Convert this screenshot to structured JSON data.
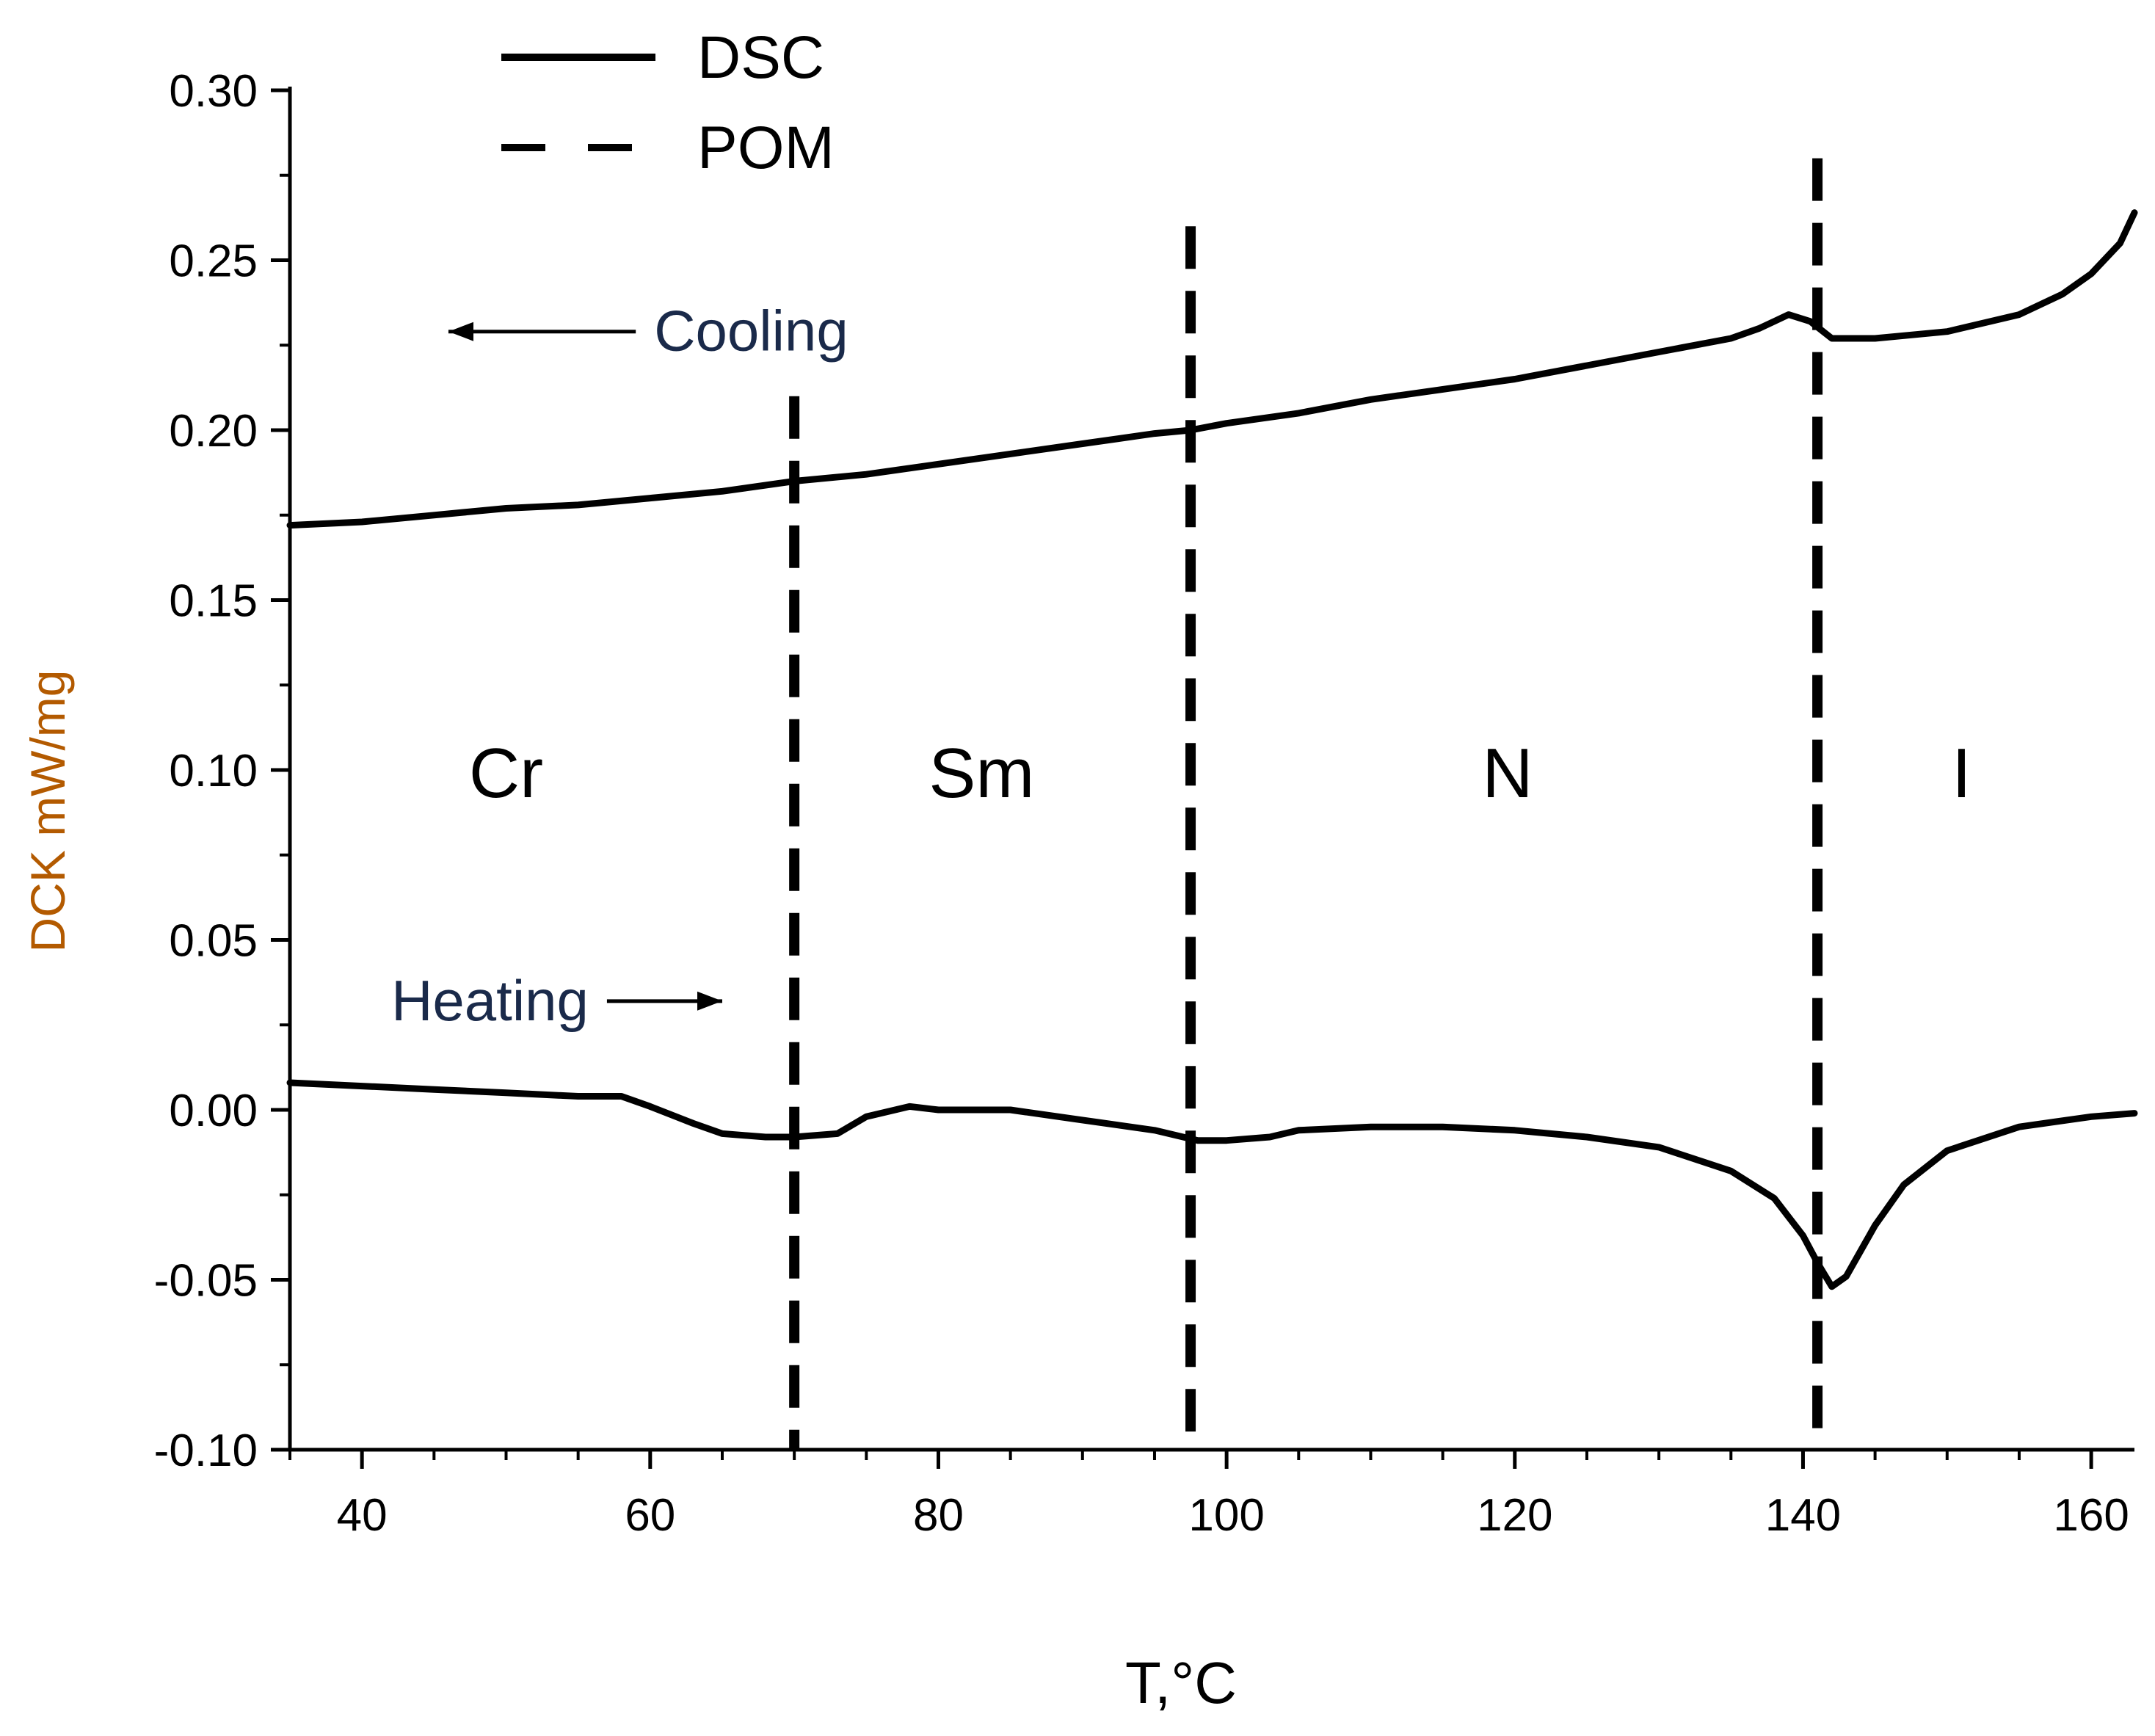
{
  "chart_data": {
    "type": "line",
    "xlabel": "T,°C",
    "ylabel": "DCK mW/mg",
    "xlim": [
      35,
      163
    ],
    "ylim": [
      -0.1,
      0.3
    ],
    "x_ticks": [
      40,
      60,
      80,
      100,
      120,
      140,
      160
    ],
    "x_tick_labels": [
      "40",
      "60",
      "80",
      "100",
      "120",
      "140",
      "160"
    ],
    "y_ticks": [
      -0.1,
      -0.05,
      0.0,
      0.05,
      0.1,
      0.15,
      0.2,
      0.25,
      0.3
    ],
    "y_tick_labels": [
      "-0.10",
      "-0.05",
      "0.00",
      "0.05",
      "0.10",
      "0.15",
      "0.20",
      "0.25",
      "0.30"
    ],
    "legend": [
      {
        "label": "DSC",
        "style": "solid"
      },
      {
        "label": "POM",
        "style": "dashed"
      }
    ],
    "legend_position": "top-left",
    "series": [
      {
        "name": "Cooling",
        "style": "solid",
        "color": "#000000",
        "x": [
          35,
          40,
          45,
          50,
          55,
          60,
          65,
          70,
          75,
          80,
          85,
          90,
          95,
          97.5,
          100,
          105,
          110,
          115,
          120,
          125,
          130,
          135,
          137,
          139,
          140.5,
          142,
          145,
          150,
          155,
          158,
          160,
          162,
          163
        ],
        "y": [
          0.172,
          0.173,
          0.175,
          0.177,
          0.178,
          0.18,
          0.182,
          0.185,
          0.187,
          0.19,
          0.193,
          0.196,
          0.199,
          0.2,
          0.202,
          0.205,
          0.209,
          0.212,
          0.215,
          0.219,
          0.223,
          0.227,
          0.23,
          0.234,
          0.232,
          0.227,
          0.227,
          0.229,
          0.234,
          0.24,
          0.246,
          0.255,
          0.264
        ]
      },
      {
        "name": "Heating",
        "style": "solid",
        "color": "#000000",
        "x": [
          35,
          40,
          45,
          50,
          55,
          58,
          60,
          63,
          65,
          68,
          70,
          73,
          75,
          78,
          80,
          85,
          90,
          95,
          98,
          100,
          103,
          105,
          110,
          115,
          120,
          125,
          130,
          135,
          138,
          140,
          141,
          142,
          143,
          145,
          147,
          150,
          155,
          160,
          163
        ],
        "y": [
          0.008,
          0.007,
          0.006,
          0.005,
          0.004,
          0.004,
          0.001,
          -0.004,
          -0.007,
          -0.008,
          -0.008,
          -0.007,
          -0.002,
          0.001,
          0.0,
          0.0,
          -0.003,
          -0.006,
          -0.009,
          -0.009,
          -0.008,
          -0.006,
          -0.005,
          -0.005,
          -0.006,
          -0.008,
          -0.011,
          -0.018,
          -0.026,
          -0.037,
          -0.045,
          -0.052,
          -0.049,
          -0.034,
          -0.022,
          -0.012,
          -0.005,
          -0.002,
          -0.001
        ]
      }
    ],
    "phase_boundaries_pom": [
      {
        "x": 70,
        "y_from": -0.1,
        "y_to": 0.21
      },
      {
        "x": 97.5,
        "y_from": -0.1,
        "y_to": 0.26
      },
      {
        "x": 141,
        "y_from": -0.1,
        "y_to": 0.28
      }
    ],
    "phase_labels": [
      {
        "text": "Cr",
        "x": 50,
        "y": 0.092
      },
      {
        "text": "Sm",
        "x": 83,
        "y": 0.092
      },
      {
        "text": "N",
        "x": 119.5,
        "y": 0.092
      },
      {
        "text": "I",
        "x": 151,
        "y": 0.092
      }
    ],
    "annotations": [
      {
        "text": "Cooling",
        "x": 60,
        "y": 0.229,
        "arrow": "left",
        "arrow_from": 59,
        "arrow_to": 46
      },
      {
        "text": "Heating",
        "x": 58,
        "y": 0.032,
        "arrow": "right",
        "arrow_from": 57,
        "arrow_to": 65
      }
    ]
  }
}
